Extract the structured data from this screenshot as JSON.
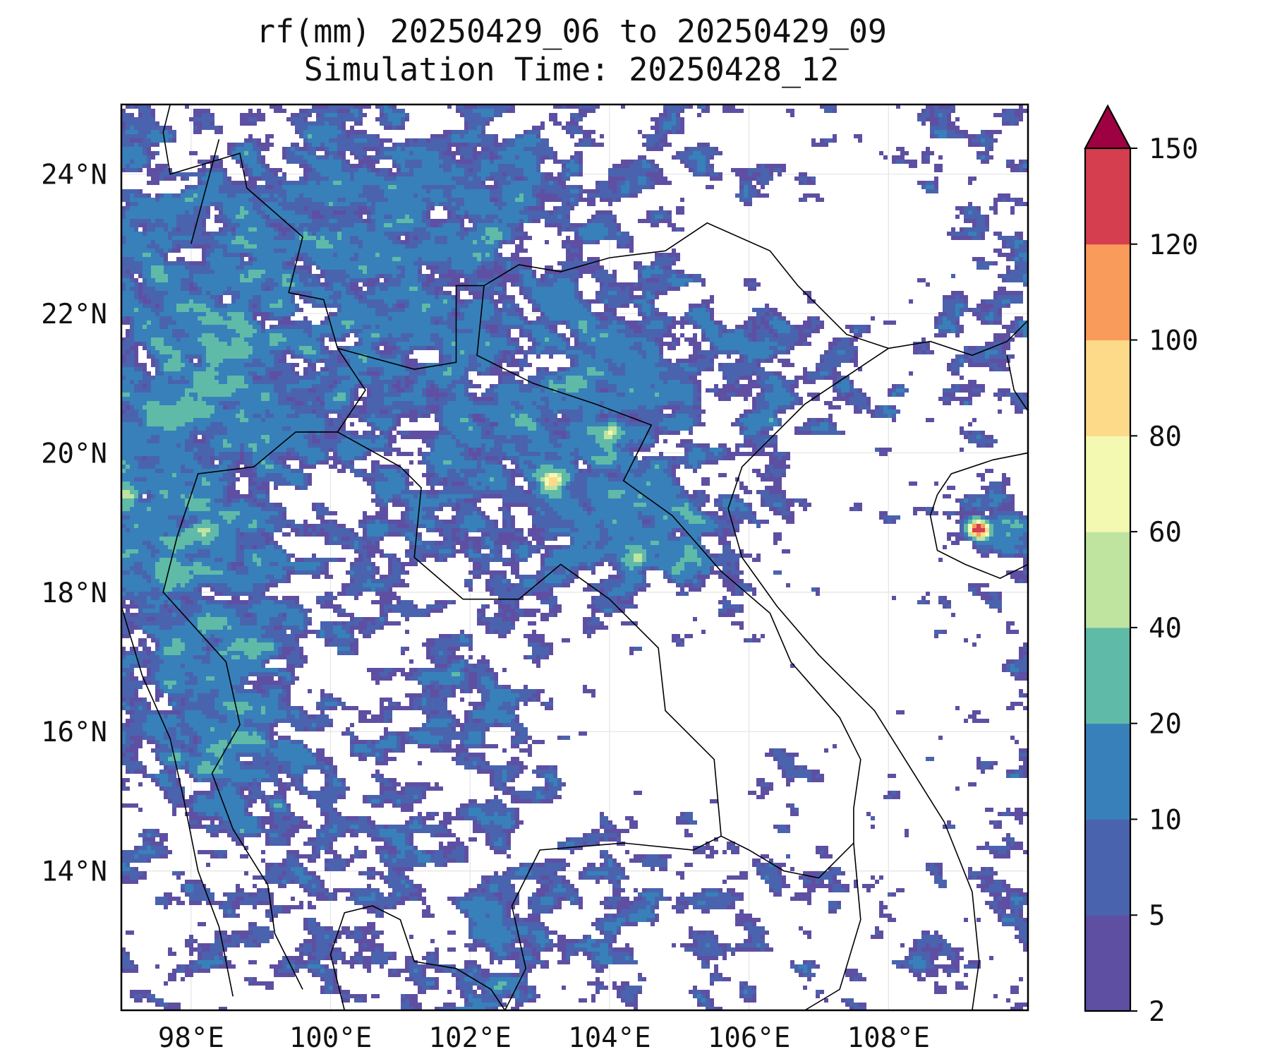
{
  "title": {
    "line1": "rf(mm) 20250429_06 to 20250429_09",
    "line2": "Simulation Time: 20250428_12"
  },
  "map": {
    "lon_range": [
      97.0,
      110.0
    ],
    "lat_range": [
      12.0,
      25.0
    ],
    "lon_ticks": [
      98,
      100,
      102,
      104,
      106,
      108
    ],
    "lat_ticks": [
      14,
      16,
      18,
      20,
      22,
      24
    ],
    "lon_tick_labels": [
      "98°E",
      "100°E",
      "102°E",
      "104°E",
      "106°E",
      "108°E"
    ],
    "lat_tick_labels": [
      "14°N",
      "16°N",
      "18°N",
      "20°N",
      "22°N",
      "24°N"
    ],
    "gridlines": true
  },
  "colorbar": {
    "levels": [
      2,
      5,
      10,
      20,
      40,
      60,
      80,
      100,
      120,
      150
    ],
    "labels": [
      "2",
      "5",
      "10",
      "20",
      "40",
      "60",
      "80",
      "100",
      "120",
      "150"
    ],
    "colors": [
      "#5E4FA2",
      "#4A63AE",
      "#3880BA",
      "#5FBAA8",
      "#BFE4A0",
      "#F3F9B0",
      "#FDD98A",
      "#F99B5A",
      "#D53E4F"
    ],
    "extend_color": "#9E0142",
    "extend": "max"
  },
  "chart_data": {
    "type": "heatmap",
    "title": "rf(mm) 20250429_06 to 20250429_09",
    "subtitle": "Simulation Time: 20250428_12",
    "units": "mm",
    "x_range": [
      97.0,
      110.0
    ],
    "y_range": [
      12.0,
      25.0
    ],
    "peaks": [
      {
        "lon": 109.3,
        "lat": 18.9,
        "value": 150
      },
      {
        "lon": 103.2,
        "lat": 19.6,
        "value": 70
      },
      {
        "lon": 104.0,
        "lat": 20.3,
        "value": 45
      },
      {
        "lon": 104.4,
        "lat": 18.5,
        "value": 40
      },
      {
        "lon": 98.2,
        "lat": 18.9,
        "value": 30
      },
      {
        "lon": 97.1,
        "lat": 19.4,
        "value": 40
      }
    ]
  }
}
